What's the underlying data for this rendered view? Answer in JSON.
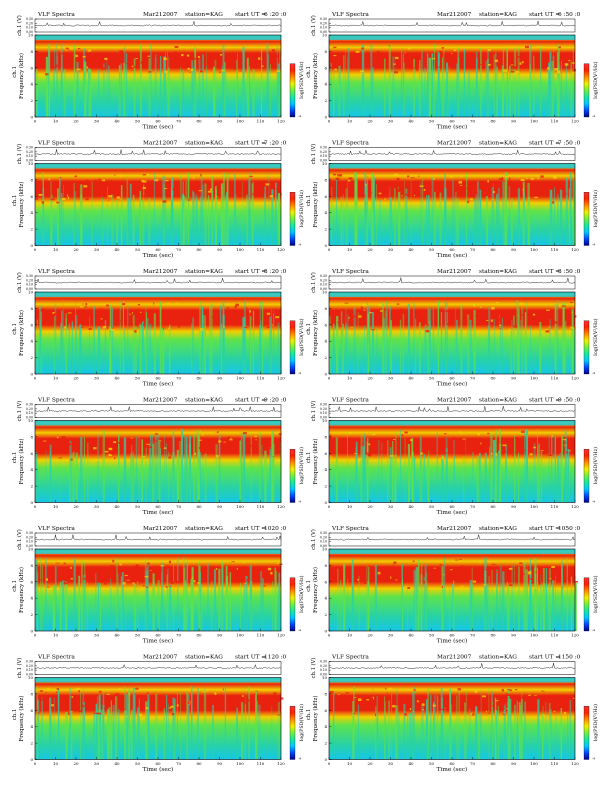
{
  "page": {
    "title_prefix": "VLF Spectra",
    "date": "Mar212007",
    "station": "station=KAG",
    "start_prefix": "start  UT ="
  },
  "labels": {
    "ch_axis": "ch.1 (V)",
    "ch1": "ch.1",
    "frequency": "Frequency  (kHz)",
    "time": "Time  (sec)",
    "colorbar": "log(PSD(V²/Hz)"
  },
  "colors": {
    "spectrum_high": "#e8220f",
    "spectrum_upper": "#f2d000",
    "spectrum_mid": "#5ee34a",
    "spectrum_low": "#28d2a6",
    "spectrum_floor": "#15c6e8",
    "colorbar": [
      "#00008c",
      "#0047ff",
      "#00c8ff",
      "#18e6a0",
      "#6ef040",
      "#f0f000",
      "#ff8c00",
      "#ff2000",
      "#ff3030"
    ]
  },
  "chart_data": [
    {
      "type": "heatmap",
      "panel": 1,
      "start_ut": "6 :20 :0",
      "x_range": [
        0,
        120
      ],
      "y_range": [
        0,
        10
      ],
      "ch_ylim": [
        0,
        0.3
      ],
      "x_ticks": [
        "0",
        "10",
        "20",
        "30",
        "40",
        "50",
        "60",
        "70",
        "80",
        "90",
        "100",
        "110",
        "120"
      ],
      "y_ticks": [
        "0",
        "2",
        "4",
        "6",
        "8",
        "10"
      ],
      "ch_ticks": [
        "0.00",
        "0.10",
        "0.20",
        "0.30"
      ],
      "colorbar_ticks": [
        "-4"
      ]
    },
    {
      "type": "heatmap",
      "panel": 2,
      "start_ut": "6 :50 :0",
      "x_range": [
        0,
        120
      ],
      "y_range": [
        0,
        10
      ],
      "ch_ylim": [
        0,
        0.3
      ],
      "x_ticks": [
        "0",
        "10",
        "20",
        "30",
        "40",
        "50",
        "60",
        "70",
        "80",
        "90",
        "100",
        "110",
        "120"
      ],
      "y_ticks": [
        "0",
        "2",
        "4",
        "6",
        "8",
        "10"
      ],
      "ch_ticks": [
        "0.00",
        "0.10",
        "0.20",
        "0.30"
      ],
      "colorbar_ticks": [
        "-4"
      ]
    },
    {
      "type": "heatmap",
      "panel": 3,
      "start_ut": "7 :20 :0",
      "x_range": [
        0,
        120
      ],
      "y_range": [
        0,
        10
      ],
      "ch_ylim": [
        0,
        0.3
      ],
      "x_ticks": [
        "0",
        "10",
        "20",
        "30",
        "40",
        "50",
        "60",
        "70",
        "80",
        "90",
        "100",
        "110",
        "120"
      ],
      "y_ticks": [
        "0",
        "2",
        "4",
        "6",
        "8",
        "10"
      ],
      "ch_ticks": [
        "0.00",
        "0.10",
        "0.20",
        "0.30"
      ],
      "colorbar_ticks": [
        "-4"
      ]
    },
    {
      "type": "heatmap",
      "panel": 4,
      "start_ut": "7 :50 :0",
      "x_range": [
        0,
        120
      ],
      "y_range": [
        0,
        10
      ],
      "ch_ylim": [
        0,
        0.3
      ],
      "x_ticks": [
        "0",
        "10",
        "20",
        "30",
        "40",
        "50",
        "60",
        "70",
        "80",
        "90",
        "100",
        "110",
        "120"
      ],
      "y_ticks": [
        "0",
        "2",
        "4",
        "6",
        "8",
        "10"
      ],
      "ch_ticks": [
        "0.00",
        "0.10",
        "0.20",
        "0.30"
      ],
      "colorbar_ticks": [
        "-4"
      ]
    },
    {
      "type": "heatmap",
      "panel": 5,
      "start_ut": "8 :20 :0",
      "x_range": [
        0,
        120
      ],
      "y_range": [
        0,
        10
      ],
      "ch_ylim": [
        0,
        0.3
      ],
      "x_ticks": [
        "0",
        "10",
        "20",
        "30",
        "40",
        "50",
        "60",
        "70",
        "80",
        "90",
        "100",
        "110",
        "120"
      ],
      "y_ticks": [
        "0",
        "2",
        "4",
        "6",
        "8",
        "10"
      ],
      "ch_ticks": [
        "0.00",
        "0.10",
        "0.20",
        "0.30"
      ],
      "colorbar_ticks": [
        "-4"
      ]
    },
    {
      "type": "heatmap",
      "panel": 6,
      "start_ut": "8 :50 :0",
      "x_range": [
        0,
        120
      ],
      "y_range": [
        0,
        10
      ],
      "ch_ylim": [
        0,
        0.3
      ],
      "x_ticks": [
        "0",
        "10",
        "20",
        "30",
        "40",
        "50",
        "60",
        "70",
        "80",
        "90",
        "100",
        "110",
        "120"
      ],
      "y_ticks": [
        "0",
        "2",
        "4",
        "6",
        "8",
        "10"
      ],
      "ch_ticks": [
        "0.00",
        "0.10",
        "0.20",
        "0.30"
      ],
      "colorbar_ticks": [
        "-4"
      ]
    },
    {
      "type": "heatmap",
      "panel": 7,
      "start_ut": "9 :20 :0",
      "x_range": [
        0,
        120
      ],
      "y_range": [
        0,
        10
      ],
      "ch_ylim": [
        0,
        0.3
      ],
      "x_ticks": [
        "0",
        "10",
        "20",
        "30",
        "40",
        "50",
        "60",
        "70",
        "80",
        "90",
        "100",
        "110",
        "120"
      ],
      "y_ticks": [
        "0",
        "2",
        "4",
        "6",
        "8",
        "10"
      ],
      "ch_ticks": [
        "0.00",
        "0.10",
        "0.20",
        "0.30"
      ],
      "colorbar_ticks": [
        "-4"
      ]
    },
    {
      "type": "heatmap",
      "panel": 8,
      "start_ut": "9 :50 :0",
      "x_range": [
        0,
        120
      ],
      "y_range": [
        0,
        10
      ],
      "ch_ylim": [
        0,
        0.3
      ],
      "x_ticks": [
        "0",
        "10",
        "20",
        "30",
        "40",
        "50",
        "60",
        "70",
        "80",
        "90",
        "100",
        "110",
        "120"
      ],
      "y_ticks": [
        "0",
        "2",
        "4",
        "6",
        "8",
        "10"
      ],
      "ch_ticks": [
        "0.00",
        "0.10",
        "0.20",
        "0.30"
      ],
      "colorbar_ticks": [
        "-4"
      ]
    },
    {
      "type": "heatmap",
      "panel": 9,
      "start_ut": "1020 :0",
      "x_range": [
        0,
        120
      ],
      "y_range": [
        0,
        10
      ],
      "ch_ylim": [
        0,
        0.3
      ],
      "x_ticks": [
        "0",
        "10",
        "20",
        "30",
        "40",
        "50",
        "60",
        "70",
        "80",
        "90",
        "100",
        "110",
        "120"
      ],
      "y_ticks": [
        "0",
        "2",
        "4",
        "6",
        "8",
        "10"
      ],
      "ch_ticks": [
        "0.00",
        "0.10",
        "0.20",
        "0.30"
      ],
      "colorbar_ticks": [
        "-4"
      ]
    },
    {
      "type": "heatmap",
      "panel": 10,
      "start_ut": "1050 :0",
      "x_range": [
        0,
        120
      ],
      "y_range": [
        0,
        10
      ],
      "ch_ylim": [
        0,
        0.3
      ],
      "x_ticks": [
        "0",
        "10",
        "20",
        "30",
        "40",
        "50",
        "60",
        "70",
        "80",
        "90",
        "100",
        "110",
        "120"
      ],
      "y_ticks": [
        "0",
        "2",
        "4",
        "6",
        "8",
        "10"
      ],
      "ch_ticks": [
        "0.00",
        "0.10",
        "0.20",
        "0.30"
      ],
      "colorbar_ticks": [
        "-4"
      ]
    },
    {
      "type": "heatmap",
      "panel": 11,
      "start_ut": "1120 :0",
      "x_range": [
        0,
        120
      ],
      "y_range": [
        0,
        10
      ],
      "ch_ylim": [
        0,
        0.3
      ],
      "x_ticks": [
        "0",
        "10",
        "20",
        "30",
        "40",
        "50",
        "60",
        "70",
        "80",
        "90",
        "100",
        "110",
        "120"
      ],
      "y_ticks": [
        "0",
        "2",
        "4",
        "6",
        "8",
        "10"
      ],
      "ch_ticks": [
        "0.00",
        "0.10",
        "0.20",
        "0.30"
      ],
      "colorbar_ticks": [
        "-4"
      ]
    },
    {
      "type": "heatmap",
      "panel": 12,
      "start_ut": "1150 :0",
      "x_range": [
        0,
        120
      ],
      "y_range": [
        0,
        10
      ],
      "ch_ylim": [
        0,
        0.3
      ],
      "x_ticks": [
        "0",
        "10",
        "20",
        "30",
        "40",
        "50",
        "60",
        "70",
        "80",
        "90",
        "100",
        "110",
        "120"
      ],
      "y_ticks": [
        "0",
        "2",
        "4",
        "6",
        "8",
        "10"
      ],
      "ch_ticks": [
        "0.00",
        "0.10",
        "0.20",
        "0.30"
      ],
      "colorbar_ticks": [
        "-4"
      ]
    }
  ]
}
